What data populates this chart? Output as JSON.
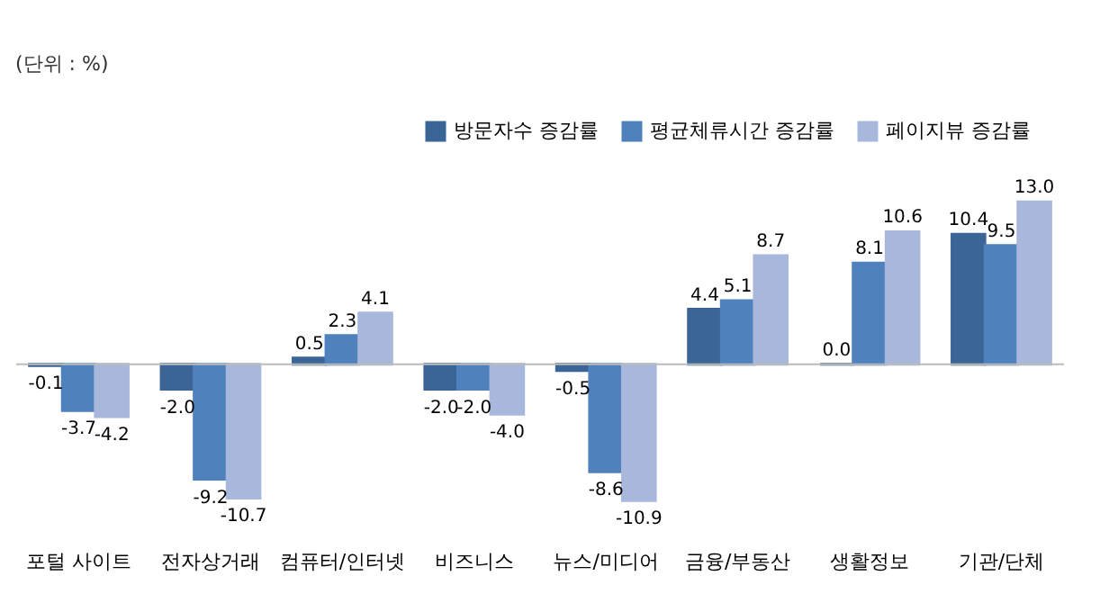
{
  "chart_data": {
    "type": "bar",
    "categories": [
      "포털 사이트",
      "전자상거래",
      "컴퓨터/인터넷",
      "비즈니스",
      "뉴스/미디어",
      "금융/부동산",
      "생활정보",
      "기관/단체"
    ],
    "series": [
      {
        "name": "방문자수 증감률",
        "color": "#3b6497",
        "values": [
          -0.1,
          -2.0,
          0.5,
          -2.0,
          -0.5,
          4.4,
          0.0,
          10.4
        ],
        "value_labels": [
          "-0.1",
          "-2.0",
          "0.5",
          "-2.0",
          "-0.5",
          "4.4",
          "0.0",
          "10.4"
        ]
      },
      {
        "name": "평균체류시간 증감률",
        "color": "#4f81bd",
        "values": [
          -3.7,
          -9.2,
          2.3,
          -2.0,
          -8.6,
          5.1,
          8.1,
          9.5
        ],
        "value_labels": [
          "-3.7",
          "-9.2",
          "2.3",
          "-2.0",
          "-8.6",
          "5.1",
          "8.1",
          "9.5"
        ]
      },
      {
        "name": "페이지뷰 증감률",
        "color": "#a8b8dc",
        "values": [
          -4.2,
          -10.7,
          4.1,
          -4.0,
          -10.9,
          8.7,
          10.6,
          13.0
        ],
        "value_labels": [
          "-4.2",
          "-10.7",
          "4.1",
          "-4.0",
          "-10.9",
          "8.7",
          "10.6",
          "13.0"
        ]
      }
    ],
    "legend": "top right",
    "annotations": [
      "(단위 : %)"
    ]
  }
}
